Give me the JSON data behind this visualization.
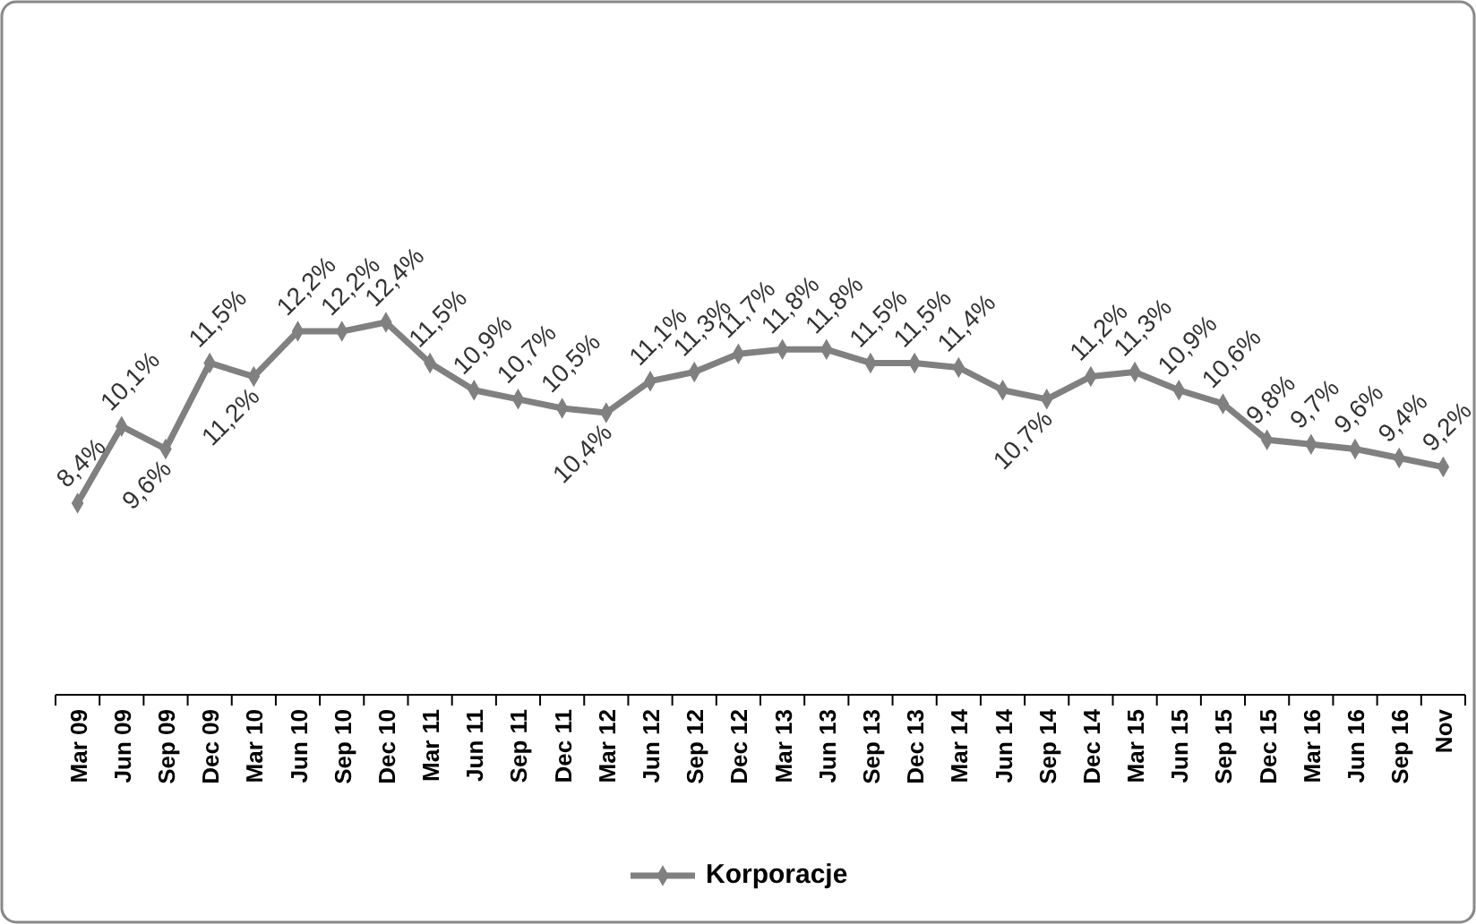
{
  "chart_data": {
    "type": "line",
    "categories": [
      "Mar 09",
      "Jun 09",
      "Sep 09",
      "Dec 09",
      "Mar 10",
      "Jun 10",
      "Sep 10",
      "Dec 10",
      "Mar 11",
      "Jun 11",
      "Sep 11",
      "Dec 11",
      "Mar 12",
      "Jun 12",
      "Sep 12",
      "Dec 12",
      "Mar 13",
      "Jun 13",
      "Sep 13",
      "Dec 13",
      "Mar 14",
      "Jun 14",
      "Sep 14",
      "Dec 14",
      "Mar 15",
      "Jun 15",
      "Sep 15",
      "Dec 15",
      "Mar 16",
      "Jun 16",
      "Sep 16",
      "Nov"
    ],
    "series": [
      {
        "name": "Korporacje",
        "color": "#808080",
        "values": [
          8.4,
          10.1,
          9.6,
          11.5,
          11.2,
          12.2,
          12.2,
          12.4,
          11.5,
          10.9,
          10.7,
          10.5,
          10.4,
          11.1,
          11.3,
          11.7,
          11.8,
          11.8,
          11.5,
          11.5,
          11.4,
          10.9,
          10.7,
          11.2,
          11.3,
          10.9,
          10.6,
          9.8,
          9.7,
          9.6,
          9.4,
          9.2
        ],
        "value_labels": [
          "8,4%",
          "10,1%",
          "9,6%",
          "11,5%",
          "11,2%",
          "12,2%",
          "12,2%",
          "12,4%",
          "11,5%",
          "10,9%",
          "10,7%",
          "10,5%",
          "10,4%",
          "11,1%",
          "11,3%",
          "11,7%",
          "11,8%",
          "11,8%",
          "11,5%",
          "11,5%",
          "11,4%",
          null,
          "10,7%",
          "11,2%",
          "11,3%",
          "10,9%",
          "10,6%",
          "9,8%",
          "9,7%",
          "9,6%",
          "9,4%",
          "9,2%"
        ]
      }
    ],
    "tick_labels": "x",
    "legend": "bottom",
    "marker": "diamond",
    "line_style": "solid"
  }
}
